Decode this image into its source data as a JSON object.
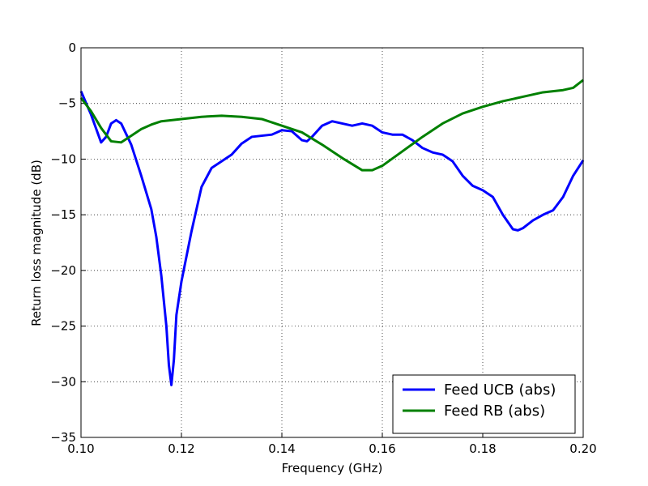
{
  "chart_data": {
    "type": "line",
    "xlabel": "Frequency (GHz)",
    "ylabel": "Return loss magnitude (dB)",
    "xlim": [
      0.1,
      0.2
    ],
    "ylim": [
      -35,
      0
    ],
    "xticks": [
      {
        "value": 0.1,
        "label": "0.10"
      },
      {
        "value": 0.12,
        "label": "0.12"
      },
      {
        "value": 0.14,
        "label": "0.14"
      },
      {
        "value": 0.16,
        "label": "0.16"
      },
      {
        "value": 0.18,
        "label": "0.18"
      },
      {
        "value": 0.2,
        "label": "0.20"
      }
    ],
    "yticks": [
      {
        "value": -35,
        "label": "−35"
      },
      {
        "value": -30,
        "label": "−30"
      },
      {
        "value": -25,
        "label": "−25"
      },
      {
        "value": -20,
        "label": "−20"
      },
      {
        "value": -15,
        "label": "−15"
      },
      {
        "value": -10,
        "label": "−10"
      },
      {
        "value": -5,
        "label": "−5"
      },
      0
    ],
    "grid": true,
    "legend": "lower right",
    "series": [
      {
        "name": "Feed UCB (abs)",
        "color": "#0000ff",
        "x": [
          0.1,
          0.102,
          0.104,
          0.105,
          0.106,
          0.107,
          0.108,
          0.11,
          0.112,
          0.114,
          0.115,
          0.116,
          0.117,
          0.1175,
          0.118,
          0.1185,
          0.119,
          0.12,
          0.122,
          0.124,
          0.126,
          0.128,
          0.13,
          0.132,
          0.134,
          0.136,
          0.138,
          0.14,
          0.142,
          0.144,
          0.145,
          0.146,
          0.148,
          0.15,
          0.152,
          0.154,
          0.156,
          0.158,
          0.16,
          0.162,
          0.164,
          0.166,
          0.168,
          0.17,
          0.172,
          0.174,
          0.176,
          0.178,
          0.18,
          0.182,
          0.184,
          0.186,
          0.187,
          0.188,
          0.19,
          0.192,
          0.194,
          0.196,
          0.198,
          0.2
        ],
        "values": [
          -3.9,
          -6.0,
          -8.5,
          -8.0,
          -6.8,
          -6.5,
          -6.8,
          -8.7,
          -11.5,
          -14.5,
          -17,
          -20.5,
          -25,
          -28.5,
          -30.3,
          -28,
          -24,
          -21,
          -16.5,
          -12.5,
          -10.8,
          -10.2,
          -9.6,
          -8.6,
          -8,
          -7.9,
          -7.8,
          -7.4,
          -7.5,
          -8.3,
          -8.4,
          -8,
          -7.0,
          -6.6,
          -6.8,
          -7.0,
          -6.8,
          -7.0,
          -7.6,
          -7.8,
          -7.8,
          -8.3,
          -9.0,
          -9.4,
          -9.6,
          -10.2,
          -11.5,
          -12.4,
          -12.8,
          -13.4,
          -15,
          -16.3,
          -16.4,
          -16.2,
          -15.5,
          -15,
          -14.6,
          -13.4,
          -11.5,
          -10.1
        ]
      },
      {
        "name": "Feed RB (abs)",
        "color": "#008000",
        "x": [
          0.1,
          0.102,
          0.104,
          0.106,
          0.108,
          0.11,
          0.112,
          0.114,
          0.116,
          0.12,
          0.124,
          0.128,
          0.132,
          0.136,
          0.14,
          0.144,
          0.148,
          0.152,
          0.156,
          0.158,
          0.16,
          0.164,
          0.168,
          0.172,
          0.176,
          0.18,
          0.184,
          0.188,
          0.192,
          0.196,
          0.198,
          0.2
        ],
        "values": [
          -4.5,
          -5.7,
          -7.2,
          -8.4,
          -8.5,
          -7.9,
          -7.3,
          -6.9,
          -6.6,
          -6.4,
          -6.2,
          -6.1,
          -6.2,
          -6.4,
          -7.0,
          -7.6,
          -8.7,
          -9.9,
          -11.0,
          -11.0,
          -10.6,
          -9.3,
          -8.0,
          -6.8,
          -5.9,
          -5.3,
          -4.8,
          -4.4,
          -4.0,
          -3.8,
          -3.6,
          -2.9
        ]
      }
    ]
  }
}
